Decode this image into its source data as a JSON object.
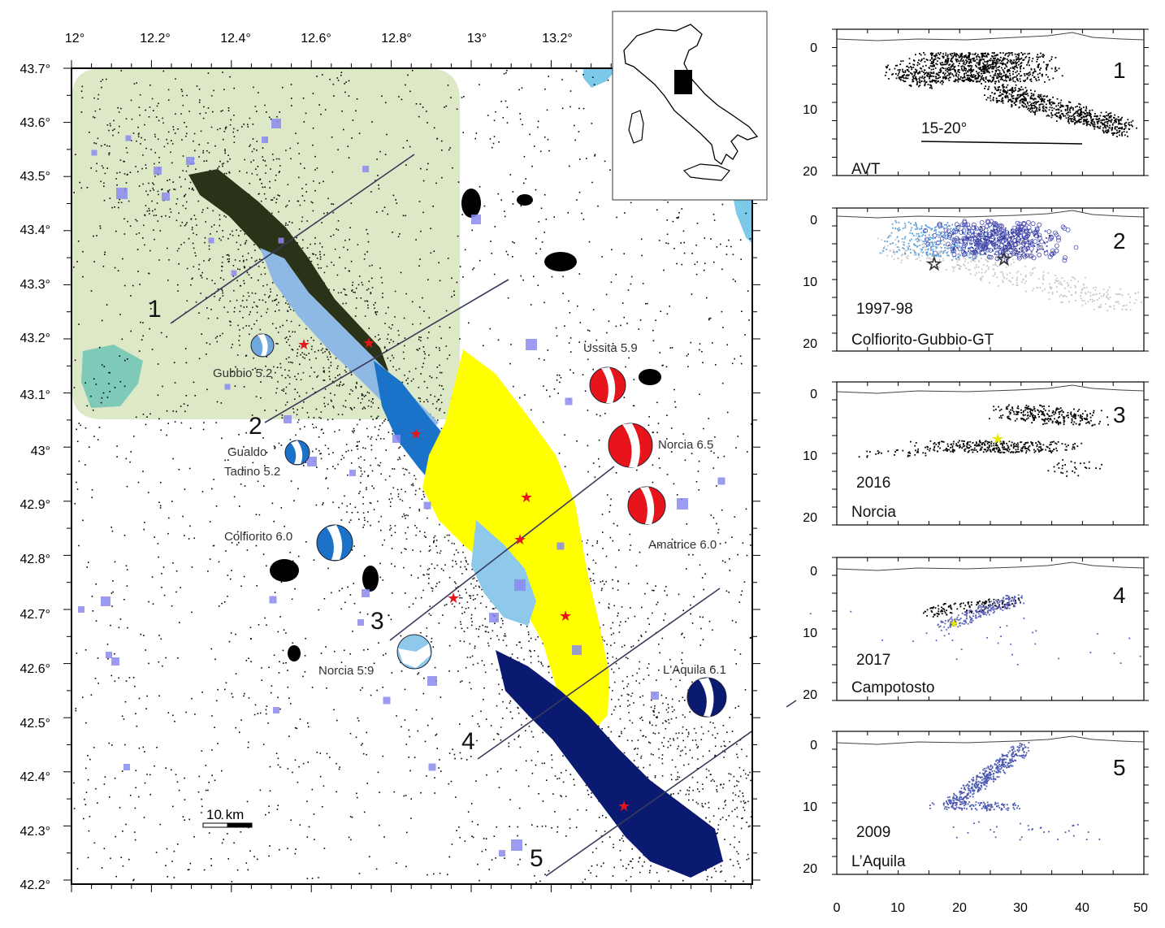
{
  "map": {
    "lon_ticks": [
      "12°",
      "12.2°",
      "12.4°",
      "12.6°",
      "12.8°",
      "13°",
      "13.2°"
    ],
    "lat_ticks": [
      "43.7°",
      "43.6°",
      "43.5°",
      "43.4°",
      "43.3°",
      "43.2°",
      "43.1°",
      "43°",
      "42.9°",
      "42.8°",
      "42.7°",
      "42.6°",
      "42.5°",
      "42.4°",
      "42.3°",
      "42.2°"
    ],
    "section_numbers": [
      "1",
      "2",
      "3",
      "4",
      "5"
    ],
    "events": [
      {
        "label": "Gubbio 5.2",
        "color": "#6fa8dc"
      },
      {
        "label_line1": "Gualdo",
        "label_line2": "Tadino  5.2",
        "color": "#1a73c9"
      },
      {
        "label": "Colfiorito 6.0",
        "color": "#1a73c9"
      },
      {
        "label": "Norcia 5.9",
        "color": "#8ec9ec"
      },
      {
        "label": "Ussita 5.9",
        "color": "#e8141b"
      },
      {
        "label": "Norcia 6.5",
        "color": "#e8141b"
      },
      {
        "label": "Amatrice 6.0",
        "color": "#e8141b"
      },
      {
        "label": "L'Aquila 6.1",
        "color": "#0a1a70"
      }
    ],
    "scale_bar": "10 km",
    "colors": {
      "avt_region": "#dde9c6",
      "background_seismicity": "#000000",
      "seq_1997": "#1a73c9",
      "seq_2016": "#ffff00",
      "seq_2009": "#0a1a70",
      "sea": "#7cc9ea",
      "lake": "#7fc9b8",
      "epicenter_star": "#e8141b",
      "historical_squares": "#8a8af0"
    }
  },
  "sections": [
    {
      "number": "1",
      "label": "AVT",
      "annotation": "15-20°"
    },
    {
      "number": "2",
      "year": "1997-98",
      "label": "Colfiorito-Gubbio-GT"
    },
    {
      "number": "3",
      "year": "2016",
      "label": "Norcia"
    },
    {
      "number": "4",
      "year": "2017",
      "label": "Campotosto"
    },
    {
      "number": "5",
      "year": "2009",
      "label": "L’Aquila"
    }
  ],
  "section_depth_ticks": [
    "0",
    "10",
    "20"
  ],
  "section_x_ticks": [
    "0",
    "10",
    "20",
    "30",
    "40",
    "50"
  ]
}
